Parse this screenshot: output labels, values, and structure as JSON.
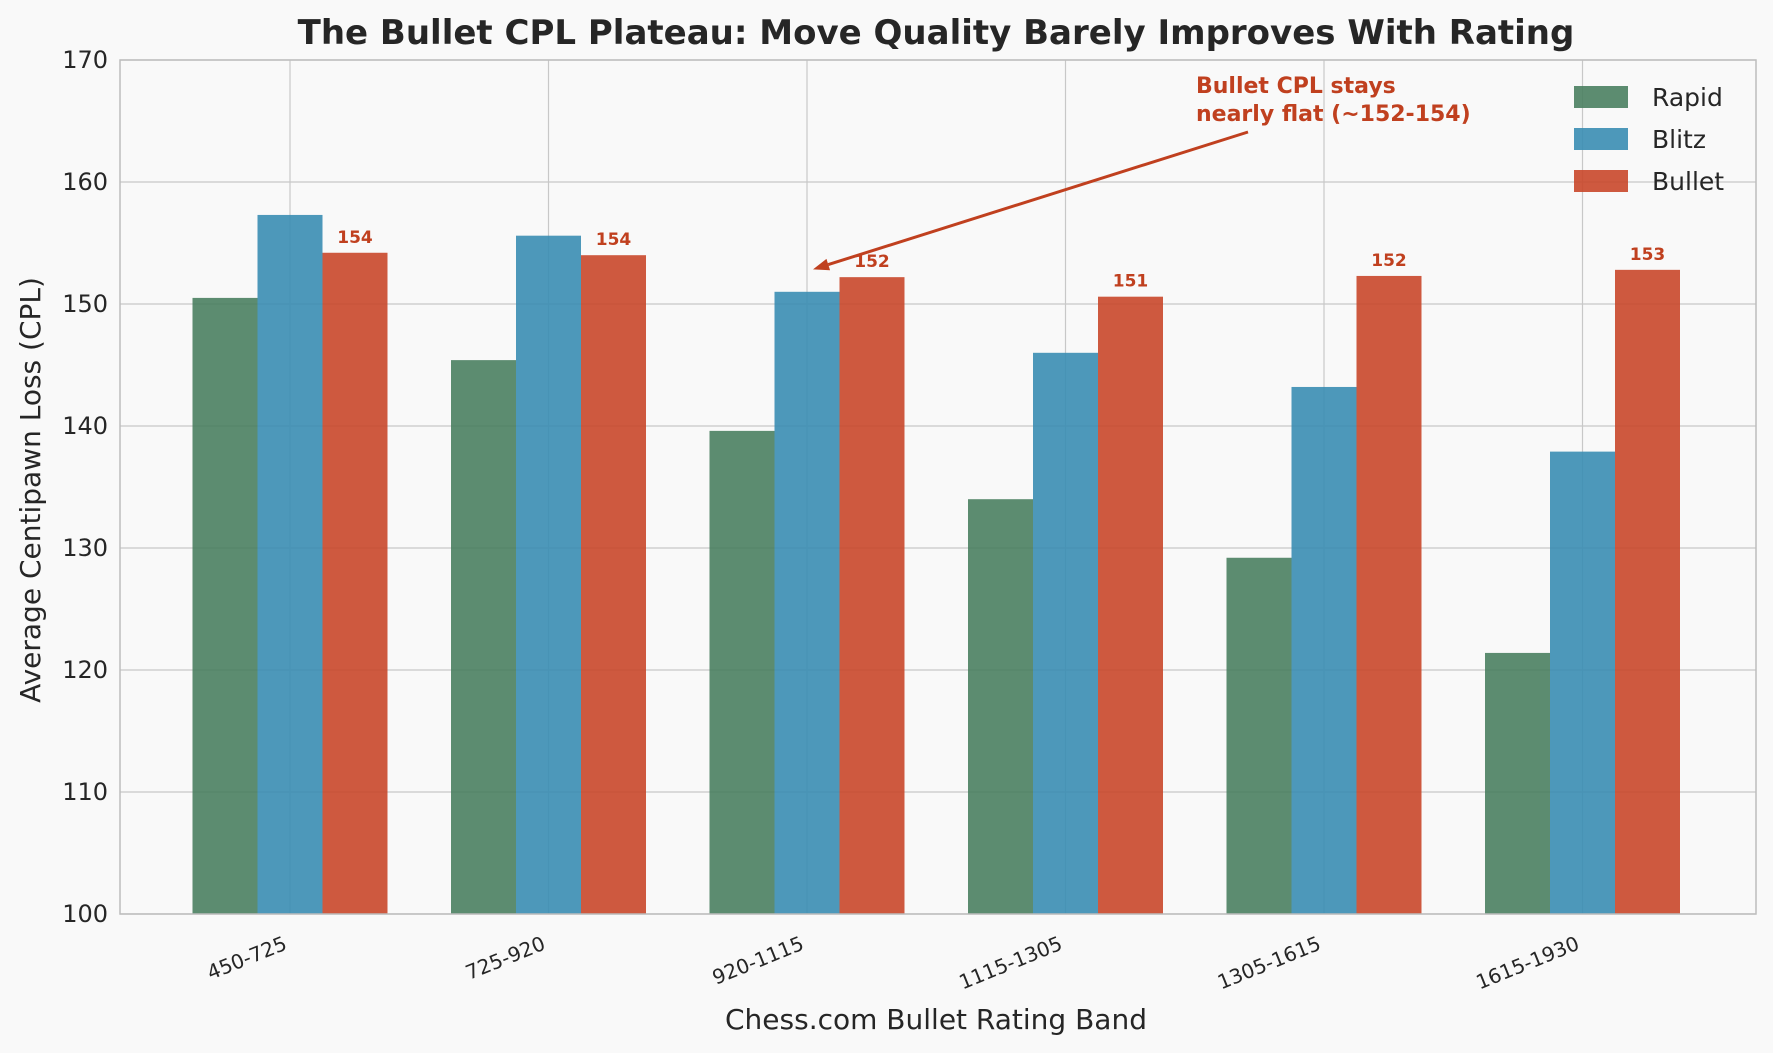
{
  "chart_data": {
    "type": "bar",
    "title": "The Bullet CPL Plateau: Move Quality Barely Improves With Rating",
    "xlabel": "Chess.com Bullet Rating Band",
    "ylabel": "Average Centipawn Loss (CPL)",
    "ylim": [
      100,
      170
    ],
    "yticks": [
      "100",
      "110",
      "120",
      "130",
      "140",
      "150",
      "160",
      "170"
    ],
    "grid": true,
    "legend_position": "top-right",
    "categories": [
      "450-725",
      "725-920",
      "920-1115",
      "1115-1305",
      "1305-1615",
      "1615-1930"
    ],
    "series": [
      {
        "name": "Rapid",
        "color": "#4a8060",
        "values": [
          150.5,
          145.4,
          139.6,
          134.0,
          129.2,
          121.4
        ]
      },
      {
        "name": "Blitz",
        "color": "#3a8db3",
        "values": [
          157.3,
          155.6,
          151.0,
          146.0,
          143.2,
          137.9
        ]
      },
      {
        "name": "Bullet",
        "color": "#c9472a",
        "values": [
          154.2,
          154.0,
          152.2,
          150.6,
          152.3,
          152.8
        ],
        "data_labels": [
          "154",
          "154",
          "152",
          "151",
          "152",
          "153"
        ]
      }
    ],
    "annotation": {
      "lines": [
        "Bullet CPL stays",
        "nearly flat (~152-154)"
      ],
      "color": "#c0401f",
      "points_to": {
        "category": "920-1115",
        "value": 153
      }
    }
  }
}
